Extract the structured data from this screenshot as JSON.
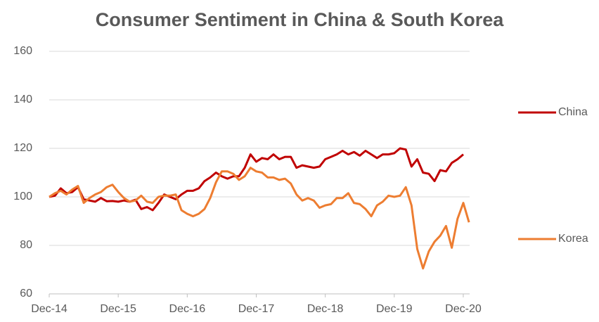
{
  "chart_data": {
    "type": "line",
    "title": "Consumer Sentiment in China & South Korea",
    "categories": [
      "Dec-14",
      null,
      null,
      null,
      null,
      null,
      null,
      null,
      null,
      null,
      null,
      null,
      "Dec-15",
      null,
      null,
      null,
      null,
      null,
      null,
      null,
      null,
      null,
      null,
      null,
      "Dec-16",
      null,
      null,
      null,
      null,
      null,
      null,
      null,
      null,
      null,
      null,
      null,
      "Dec-17",
      null,
      null,
      null,
      null,
      null,
      null,
      null,
      null,
      null,
      null,
      null,
      "Dec-18",
      null,
      null,
      null,
      null,
      null,
      null,
      null,
      null,
      null,
      null,
      null,
      "Dec-19",
      null,
      null,
      null,
      null,
      null,
      null,
      null,
      null,
      null,
      null,
      null,
      "Dec-20",
      null
    ],
    "series": [
      {
        "name": "China",
        "color": "#c00000",
        "values": [
          100,
          100.5,
          103.5,
          101.5,
          102,
          104,
          99,
          98.5,
          98,
          99.5,
          98.2,
          98.3,
          98,
          98.5,
          98,
          98.8,
          95,
          95.8,
          94.5,
          97.5,
          101,
          100,
          99,
          101,
          102.5,
          102.5,
          103.5,
          106.5,
          108,
          110,
          108.5,
          107.5,
          108.5,
          108.5,
          112,
          117.5,
          114.5,
          116,
          115.5,
          117.5,
          115.5,
          116.5,
          116.5,
          112,
          113,
          112.5,
          112,
          112.5,
          115.5,
          116.5,
          117.5,
          119,
          117.5,
          118.5,
          117,
          119,
          117.5,
          116,
          117.5,
          117.5,
          118,
          120,
          119.5,
          112.5,
          115.5,
          110,
          109.5,
          106.5,
          111,
          110.5,
          114,
          115.5,
          117.5,
          null
        ]
      },
      {
        "name": "Korea",
        "color": "#ed7d31",
        "values": [
          100,
          101.5,
          102.5,
          101,
          103,
          104.5,
          97.5,
          99.5,
          101,
          102,
          104,
          105,
          102,
          99.5,
          98,
          98.5,
          100.5,
          98,
          97.5,
          100,
          100.5,
          100.5,
          101,
          94.5,
          93,
          92,
          93,
          95,
          99.5,
          106,
          110.5,
          110.5,
          109.5,
          107,
          108.5,
          112,
          110.5,
          110,
          108,
          108,
          107,
          107.5,
          105.5,
          101,
          98.5,
          99.5,
          98.5,
          95.5,
          96.5,
          97,
          99.5,
          99.5,
          101.5,
          97.5,
          97,
          95,
          92,
          96.5,
          98,
          100.5,
          100,
          100.5,
          104,
          96.5,
          78.5,
          70.5,
          77.5,
          81.5,
          84,
          88,
          79,
          91,
          97.5,
          89.5
        ]
      }
    ],
    "ylim": [
      60,
      160
    ],
    "yticks": [
      60,
      80,
      100,
      120,
      140,
      160
    ],
    "grid": true
  }
}
